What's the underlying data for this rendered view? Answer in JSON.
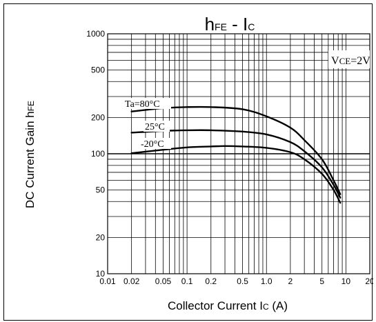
{
  "chart_data": {
    "type": "line",
    "title_main": "h",
    "title_main_sub": "FE",
    "title_sep": " - I",
    "title_sep_sub": "C",
    "xlabel": "Collector Current I",
    "xlabel_sub": "C",
    "xlabel_unit": " (A)",
    "ylabel": "DC Current Gain h",
    "ylabel_sub": "FE",
    "x_scale": "log",
    "y_scale": "log",
    "xlim": [
      0.01,
      20
    ],
    "ylim": [
      10,
      1000
    ],
    "grid": true,
    "x_ticks": [
      {
        "value": 0.01,
        "label": "0.01"
      },
      {
        "value": 0.02,
        "label": "0.02"
      },
      {
        "value": 0.05,
        "label": "0.05"
      },
      {
        "value": 0.1,
        "label": "0.1"
      },
      {
        "value": 0.2,
        "label": "0.2"
      },
      {
        "value": 0.5,
        "label": "0.5"
      },
      {
        "value": 1,
        "label": "1.0"
      },
      {
        "value": 2,
        "label": "2"
      },
      {
        "value": 5,
        "label": "5"
      },
      {
        "value": 10,
        "label": "10"
      },
      {
        "value": 20,
        "label": "20"
      }
    ],
    "y_ticks": [
      {
        "value": 10,
        "label": "10"
      },
      {
        "value": 20,
        "label": "20"
      },
      {
        "value": 50,
        "label": "50"
      },
      {
        "value": 100,
        "label": "100"
      },
      {
        "value": 200,
        "label": "200"
      },
      {
        "value": 500,
        "label": "500"
      },
      {
        "value": 1000,
        "label": "1000"
      }
    ],
    "condition": {
      "text": "V",
      "sub": "CE",
      "rest": "=2V"
    },
    "series": [
      {
        "name": "Ta=80°C",
        "x": [
          0.02,
          0.05,
          0.1,
          0.2,
          0.5,
          1.0,
          2,
          3,
          5,
          7,
          8.5
        ],
        "y": [
          225,
          240,
          245,
          245,
          235,
          205,
          165,
          130,
          90,
          60,
          46
        ]
      },
      {
        "name": "25°C",
        "x": [
          0.02,
          0.05,
          0.1,
          0.2,
          0.5,
          1.0,
          2,
          3,
          5,
          7,
          8.5
        ],
        "y": [
          150,
          155,
          157,
          157,
          153,
          145,
          125,
          105,
          77,
          55,
          43
        ]
      },
      {
        "name": "-20°C",
        "x": [
          0.02,
          0.05,
          0.1,
          0.2,
          0.3,
          0.5,
          1.0,
          2,
          3,
          5,
          7,
          8.5
        ],
        "y": [
          101,
          108,
          113,
          115,
          116,
          115,
          112,
          103,
          90,
          68,
          50,
          39
        ]
      }
    ]
  }
}
